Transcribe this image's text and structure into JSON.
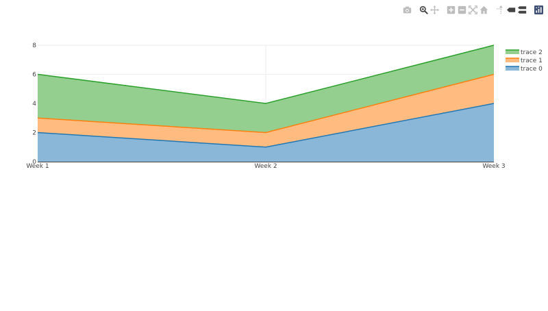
{
  "modebar": {
    "buttons": [
      {
        "name": "camera-icon"
      },
      {
        "name": "zoom-icon"
      },
      {
        "name": "pan-icon"
      },
      {
        "name": "zoom-in-icon"
      },
      {
        "name": "zoom-out-icon"
      },
      {
        "name": "autoscale-icon"
      },
      {
        "name": "home-icon"
      },
      {
        "name": "spike-lines-icon"
      },
      {
        "name": "hover-closest-icon"
      },
      {
        "name": "hover-compare-icon"
      },
      {
        "name": "plotly-logo-icon"
      }
    ],
    "icon_color": "#bcbcbc",
    "active_color": "#444444",
    "logo_color": "#3f4f75"
  },
  "chart_data": {
    "type": "area",
    "stacked": true,
    "categories": [
      "Week 1",
      "Week 2",
      "Week 3"
    ],
    "series": [
      {
        "name": "trace 0",
        "values": [
          2,
          1,
          4
        ],
        "line_color": "#1f77b4",
        "fill_color": "#8ab6d7"
      },
      {
        "name": "trace 1",
        "values": [
          1,
          1,
          2
        ],
        "line_color": "#ff7f0e",
        "fill_color": "#ffbb80"
      },
      {
        "name": "trace 2",
        "values": [
          3,
          2,
          2
        ],
        "line_color": "#2ca02c",
        "fill_color": "#94cf8f"
      }
    ],
    "yticks": [
      "0",
      "2",
      "4",
      "6",
      "8"
    ],
    "ylim": [
      0,
      8
    ],
    "grid": true,
    "legend_position": "top-right"
  }
}
